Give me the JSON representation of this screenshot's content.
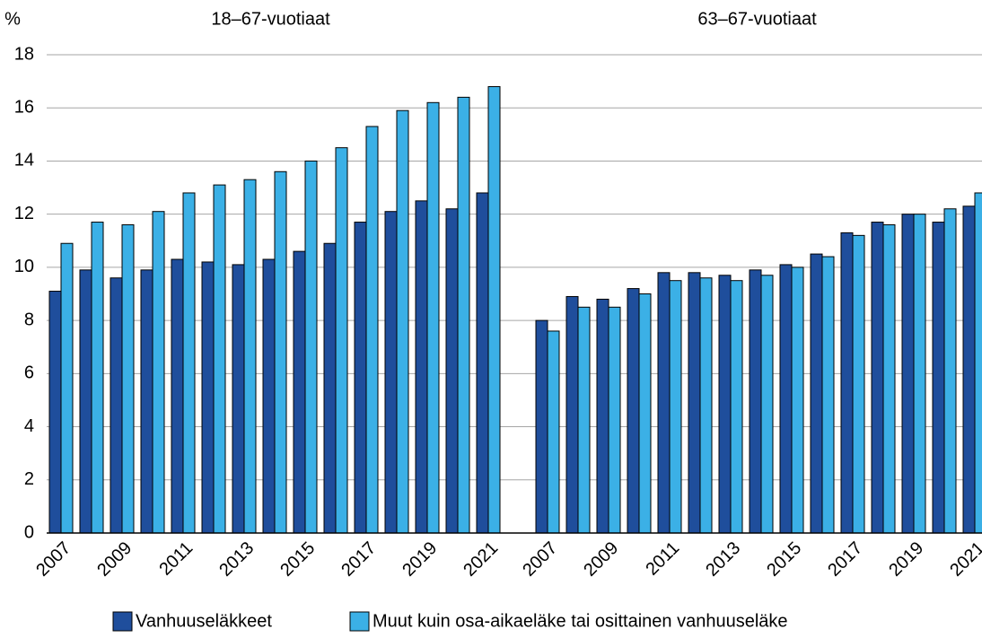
{
  "chart_data": {
    "type": "bar",
    "y_label": "%",
    "ylim": [
      0,
      18
    ],
    "yticks": [
      0,
      2,
      4,
      6,
      8,
      10,
      12,
      14,
      16,
      18
    ],
    "grid": true,
    "legend": "bottom",
    "series": [
      {
        "name": "Vanhuuseläkkeet",
        "color": "#1f4e9c"
      },
      {
        "name": "Muut kuin osa-aikaeläke tai osittainen vanhuuseläke",
        "color": "#3bb0e6"
      }
    ],
    "panels": [
      {
        "title": "18–67-vuotiaat",
        "categories": [
          "2007",
          null,
          "2009",
          null,
          "2011",
          null,
          "2013",
          null,
          "2015",
          null,
          "2017",
          null,
          "2019",
          null,
          "2021"
        ],
        "values": [
          [
            9.1,
            9.9,
            9.6,
            9.9,
            10.3,
            10.2,
            10.1,
            10.3,
            10.6,
            10.9,
            11.7,
            12.1,
            12.5,
            12.2,
            12.8
          ],
          [
            10.9,
            11.7,
            11.6,
            12.1,
            12.8,
            13.1,
            13.3,
            13.6,
            14.0,
            14.5,
            15.3,
            15.9,
            16.2,
            16.4,
            16.8
          ]
        ]
      },
      {
        "title": "63–67-vuotiaat",
        "categories": [
          "2007",
          null,
          "2009",
          null,
          "2011",
          null,
          "2013",
          null,
          "2015",
          null,
          "2017",
          null,
          "2019",
          null,
          "2021"
        ],
        "values": [
          [
            8.0,
            8.9,
            8.8,
            9.2,
            9.8,
            9.8,
            9.7,
            9.9,
            10.1,
            10.5,
            11.3,
            11.7,
            12.0,
            11.7,
            12.3
          ],
          [
            7.6,
            8.5,
            8.5,
            9.0,
            9.5,
            9.6,
            9.5,
            9.7,
            10.0,
            10.4,
            11.2,
            11.6,
            12.0,
            12.2,
            12.8
          ]
        ]
      }
    ]
  }
}
